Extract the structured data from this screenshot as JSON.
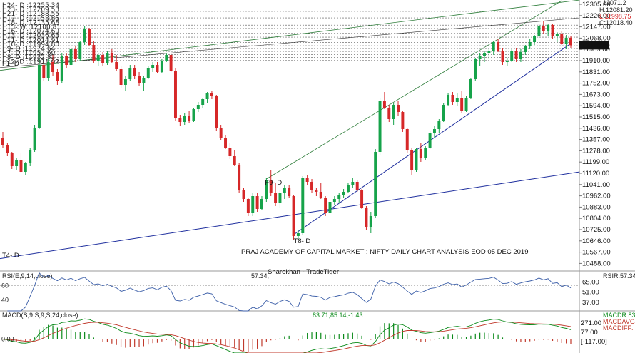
{
  "chart_data": {
    "type": "candlestick",
    "title": "PRAJ ACADEMY OF CAPITAL MARKET : NIFTY DAILY CHART ANALYSIS EOD 05 DEC 2019",
    "watermark": "Sharekhan - TradeTiger",
    "price_axis": {
      "ticks": [
        "12305.00",
        "12226.00",
        "12147.00",
        "12068.00",
        "11989.00",
        "11910.00",
        "11831.00",
        "11752.00",
        "11673.00",
        "11594.00",
        "11515.00",
        "11436.00",
        "11357.00",
        "11278.00",
        "11199.00",
        "11120.00",
        "11041.00",
        "10962.00",
        "10883.00",
        "10804.00",
        "10725.00",
        "10646.00",
        "10567.00",
        "10488.00"
      ],
      "ylim": [
        10435,
        12335
      ],
      "last_price": "12018.40"
    },
    "ohlc_info": {
      "open": "12071.2",
      "high": "H:12081.20",
      "low": "L:11998.75",
      "close": "C:12018.40"
    },
    "levels": [
      {
        "label": "H24- D :12255.34",
        "value": 12255.34
      },
      {
        "label": "H23- D :12209.53",
        "value": 12209.53
      },
      {
        "label": "H21- D :12188.55",
        "value": 12188.55
      },
      {
        "label": "H17- D :12158.85",
        "value": 12158.85
      },
      {
        "label": "H18- D :12135.68",
        "value": 12135.68
      },
      {
        "label": "H15- W :12100.81",
        "value": 12100.81
      },
      {
        "label": "H16- D :12074.69",
        "value": 12074.69
      },
      {
        "label": "H13- D :12036.63",
        "value": 12036.63
      },
      {
        "label": "H11- D :12014.91",
        "value": 12014.91
      },
      {
        "label": "H10- D :11994.80",
        "value": 11994.8
      },
      {
        "label": "H9- D :11974.64",
        "value": 11974.64
      },
      {
        "label": "H7- D :11952.60",
        "value": 11952.6
      },
      {
        "label": "H8- D :11932.82",
        "value": 11932.82
      },
      {
        "label": "H12- D :11911.02",
        "value": 11911.02
      }
    ],
    "trendline_labels": [
      "F1- D",
      "T4- D",
      "T8- D",
      "F9- D"
    ],
    "candles": [
      [
        11370,
        11410,
        11300,
        11320
      ],
      [
        11320,
        11330,
        11240,
        11260
      ],
      [
        11260,
        11270,
        11150,
        11170
      ],
      [
        11170,
        11230,
        11140,
        11210
      ],
      [
        11210,
        11260,
        11120,
        11130
      ],
      [
        11130,
        11200,
        11110,
        11190
      ],
      [
        11190,
        11300,
        11170,
        11280
      ],
      [
        11280,
        11460,
        11270,
        11440
      ],
      [
        11440,
        11920,
        11430,
        11880
      ],
      [
        11880,
        11900,
        11770,
        11790
      ],
      [
        11790,
        11920,
        11770,
        11900
      ],
      [
        11900,
        11950,
        11800,
        11830
      ],
      [
        11830,
        11850,
        11740,
        11770
      ],
      [
        11770,
        11960,
        11750,
        11940
      ],
      [
        11940,
        11960,
        11860,
        11880
      ],
      [
        11880,
        12010,
        11870,
        11990
      ],
      [
        11990,
        12010,
        11900,
        11920
      ],
      [
        11920,
        12050,
        11910,
        12040
      ],
      [
        12040,
        12150,
        12020,
        12130
      ],
      [
        12130,
        12140,
        12010,
        12020
      ],
      [
        12020,
        12050,
        11890,
        11910
      ],
      [
        11910,
        11960,
        11870,
        11950
      ],
      [
        11950,
        11970,
        11870,
        11890
      ],
      [
        11890,
        11980,
        11880,
        11960
      ],
      [
        11960,
        11990,
        11890,
        11900
      ],
      [
        11900,
        11950,
        11840,
        11850
      ],
      [
        11850,
        11870,
        11720,
        11740
      ],
      [
        11740,
        11800,
        11700,
        11780
      ],
      [
        11780,
        11880,
        11770,
        11860
      ],
      [
        11860,
        11880,
        11780,
        11800
      ],
      [
        11800,
        11830,
        11730,
        11750
      ],
      [
        11750,
        11800,
        11700,
        11790
      ],
      [
        11790,
        11870,
        11780,
        11860
      ],
      [
        11860,
        11900,
        11830,
        11880
      ],
      [
        11880,
        11900,
        11820,
        11830
      ],
      [
        11830,
        11920,
        11820,
        11910
      ],
      [
        11910,
        11960,
        11900,
        11950
      ],
      [
        11950,
        11960,
        11830,
        11840
      ],
      [
        11840,
        11860,
        11490,
        11510
      ],
      [
        11510,
        11530,
        11450,
        11480
      ],
      [
        11480,
        11540,
        11460,
        11520
      ],
      [
        11520,
        11560,
        11470,
        11490
      ],
      [
        11490,
        11580,
        11480,
        11570
      ],
      [
        11570,
        11620,
        11550,
        11600
      ],
      [
        11600,
        11650,
        11580,
        11640
      ],
      [
        11640,
        11690,
        11610,
        11680
      ],
      [
        11680,
        11700,
        11640,
        11660
      ],
      [
        11660,
        11670,
        11420,
        11440
      ],
      [
        11440,
        11460,
        11350,
        11370
      ],
      [
        11370,
        11390,
        11290,
        11300
      ],
      [
        11300,
        11330,
        11220,
        11240
      ],
      [
        11240,
        11280,
        11170,
        11180
      ],
      [
        11180,
        11190,
        10980,
        11000
      ],
      [
        11000,
        11020,
        10920,
        10940
      ],
      [
        10940,
        10950,
        10820,
        10840
      ],
      [
        10840,
        10980,
        10820,
        10960
      ],
      [
        10960,
        10980,
        10850,
        10870
      ],
      [
        10870,
        10960,
        10860,
        10940
      ],
      [
        10940,
        11090,
        10920,
        11070
      ],
      [
        11070,
        11140,
        10960,
        10980
      ],
      [
        10980,
        11050,
        10890,
        10910
      ],
      [
        10910,
        11000,
        10880,
        10980
      ],
      [
        10980,
        11040,
        10940,
        11020
      ],
      [
        11020,
        11040,
        10950,
        10960
      ],
      [
        10960,
        10970,
        10650,
        10680
      ],
      [
        10680,
        10720,
        10660,
        10700
      ],
      [
        10700,
        11100,
        10690,
        11090
      ],
      [
        11090,
        11110,
        11040,
        11060
      ],
      [
        11060,
        11080,
        10980,
        11000
      ],
      [
        11000,
        11020,
        10960,
        10990
      ],
      [
        10990,
        11050,
        10940,
        10950
      ],
      [
        10950,
        10960,
        10820,
        10840
      ],
      [
        10840,
        10940,
        10800,
        10920
      ],
      [
        10920,
        10960,
        10900,
        10940
      ],
      [
        10940,
        10980,
        10910,
        10970
      ],
      [
        10970,
        11010,
        10950,
        10990
      ],
      [
        10990,
        11050,
        10980,
        11040
      ],
      [
        11040,
        11090,
        11020,
        11060
      ],
      [
        11060,
        11070,
        10990,
        11000
      ],
      [
        11000,
        11010,
        10870,
        10880
      ],
      [
        10880,
        10890,
        10720,
        10740
      ],
      [
        10740,
        10850,
        10700,
        10820
      ],
      [
        10820,
        11290,
        10810,
        11270
      ],
      [
        11270,
        11650,
        11250,
        11630
      ],
      [
        11630,
        11690,
        11570,
        11580
      ],
      [
        11580,
        11600,
        11480,
        11500
      ],
      [
        11500,
        11610,
        11460,
        11600
      ],
      [
        11600,
        11630,
        11520,
        11550
      ],
      [
        11550,
        11560,
        11410,
        11430
      ],
      [
        11430,
        11440,
        11260,
        11280
      ],
      [
        11280,
        11300,
        11110,
        11140
      ],
      [
        11140,
        11300,
        11130,
        11290
      ],
      [
        11290,
        11330,
        11200,
        11230
      ],
      [
        11230,
        11310,
        11210,
        11300
      ],
      [
        11300,
        11420,
        11290,
        11400
      ],
      [
        11400,
        11450,
        11370,
        11430
      ],
      [
        11430,
        11500,
        11400,
        11490
      ],
      [
        11490,
        11610,
        11480,
        11600
      ],
      [
        11600,
        11680,
        11590,
        11670
      ],
      [
        11670,
        11690,
        11600,
        11620
      ],
      [
        11620,
        11680,
        11590,
        11650
      ],
      [
        11650,
        11700,
        11540,
        11560
      ],
      [
        11560,
        11660,
        11550,
        11650
      ],
      [
        11650,
        11790,
        11640,
        11780
      ],
      [
        11780,
        11930,
        11770,
        11920
      ],
      [
        11920,
        11960,
        11870,
        11940
      ],
      [
        11940,
        11980,
        11900,
        11960
      ],
      [
        11960,
        12000,
        11920,
        11980
      ],
      [
        11980,
        12050,
        11950,
        12040
      ],
      [
        12040,
        12060,
        11970,
        11980
      ],
      [
        11980,
        12000,
        11880,
        11900
      ],
      [
        11900,
        11930,
        11870,
        11910
      ],
      [
        11910,
        11990,
        11900,
        11980
      ],
      [
        11980,
        12000,
        11900,
        11920
      ],
      [
        11920,
        11990,
        11900,
        11970
      ],
      [
        11970,
        12020,
        11950,
        12010
      ],
      [
        12010,
        12060,
        11990,
        12040
      ],
      [
        12040,
        12090,
        12020,
        12080
      ],
      [
        12080,
        12170,
        12070,
        12150
      ],
      [
        12150,
        12190,
        12100,
        12120
      ],
      [
        12120,
        12170,
        12080,
        12160
      ],
      [
        12160,
        12170,
        12060,
        12080
      ],
      [
        12080,
        12110,
        12040,
        12100
      ],
      [
        12100,
        12120,
        12020,
        12030
      ],
      [
        12030,
        12090,
        11990,
        12070
      ],
      [
        12071,
        12081,
        11998,
        12018
      ]
    ],
    "rsi": {
      "label": "RSI(E,9,14,close)",
      "value_text": "57.34,",
      "right_label": "RSIR:57.34",
      "ticks": [
        "65.00",
        "51.00",
        "37.00"
      ],
      "left_ticks": [
        "60",
        "40"
      ],
      "ylim": [
        25,
        80
      ],
      "ref_levels": [
        60,
        40
      ]
    },
    "macd": {
      "label": "MACD(S,9,S,9,S,24,close)",
      "value_text": "83.71,85.14,-1.43",
      "right_labels": [
        "MACDR:83.",
        "MACDAVG:",
        "MACDIFF:"
      ],
      "ticks": [
        "271.00",
        "77.00",
        "[-117.00]"
      ],
      "left_ticks": [
        "0.00"
      ],
      "ylim": [
        -160,
        330
      ]
    },
    "colors": {
      "up": "#16a34a",
      "down": "#d62728",
      "macd_line": "#0b8a1a",
      "macd_signal": "#c0392b",
      "trend_blue": "#1f2f9e",
      "trend_green": "#2e7d3a",
      "rsi_line": "#3b5ea8"
    }
  }
}
